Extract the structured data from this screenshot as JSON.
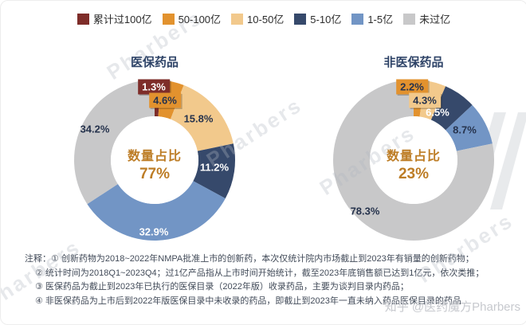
{
  "colors": {
    "darkred": "#7E2D29",
    "orange": "#E2922E",
    "tan": "#F2C98C",
    "navy": "#36496B",
    "blue": "#7295C5",
    "gray": "#C8C8C9",
    "center_text": "#BD7D26",
    "title_text": "#2F4468",
    "dark_label": "#26334D",
    "note_text": "#414A58",
    "watermark": "#C7C9CE"
  },
  "legend": {
    "items": [
      {
        "label": "累计过100亿",
        "color": "darkred"
      },
      {
        "label": "50-100亿",
        "color": "orange"
      },
      {
        "label": "10-50亿",
        "color": "tan"
      },
      {
        "label": "5-10亿",
        "color": "navy"
      },
      {
        "label": "1-5亿",
        "color": "blue"
      },
      {
        "label": "未过亿",
        "color": "gray"
      }
    ]
  },
  "chart_data": [
    {
      "type": "pie",
      "donut": true,
      "title": "医保药品",
      "center_label": "数量占比",
      "center_value": "77%",
      "categories": [
        "累计过100亿",
        "50-100亿",
        "10-50亿",
        "5-10亿",
        "1-5亿",
        "未过亿"
      ],
      "values": [
        1.3,
        4.6,
        15.8,
        11.2,
        32.9,
        34.2
      ],
      "segments": [
        {
          "category": "累计过100亿",
          "value": 1.3,
          "label": "1.3%",
          "color": "darkred"
        },
        {
          "category": "50-100亿",
          "value": 4.6,
          "label": "4.6%",
          "color": "orange"
        },
        {
          "category": "10-50亿",
          "value": 15.8,
          "label": "15.8%",
          "color": "tan"
        },
        {
          "category": "5-10亿",
          "value": 11.2,
          "label": "11.2%",
          "color": "navy"
        },
        {
          "category": "1-5亿",
          "value": 32.9,
          "label": "32.9%",
          "color": "blue"
        },
        {
          "category": "未过亿",
          "value": 34.2,
          "label": "34.2%",
          "color": "gray"
        }
      ]
    },
    {
      "type": "pie",
      "donut": true,
      "title": "非医保药品",
      "center_label": "数量占比",
      "center_value": "23%",
      "categories": [
        "50-100亿",
        "10-50亿",
        "5-10亿",
        "1-5亿",
        "未过亿"
      ],
      "values": [
        2.2,
        4.3,
        6.5,
        8.7,
        78.3
      ],
      "segments": [
        {
          "category": "50-100亿",
          "value": 2.2,
          "label": "2.2%",
          "color": "orange"
        },
        {
          "category": "10-50亿",
          "value": 4.3,
          "label": "4.3%",
          "color": "tan"
        },
        {
          "category": "5-10亿",
          "value": 6.5,
          "label": "6.5%",
          "color": "navy"
        },
        {
          "category": "1-5亿",
          "value": 8.7,
          "label": "8.7%",
          "color": "blue"
        },
        {
          "category": "未过亿",
          "value": 78.3,
          "label": "78.3%",
          "color": "gray"
        }
      ]
    }
  ],
  "notes": {
    "label": "注释：",
    "lines": [
      "① 创新药物为2018~2022年NMPA批准上市的创新药，本次仅统计院内市场截止到2023年有销量的创新药物；",
      "② 统计时间为2018Q1~2023Q4；过1亿产品指从上市时间开始统计，截至2023年底销售额已达到1亿元，依次类推；",
      "③ 医保药品为截止到2023年已执行的医保目录（2022年版）收录药品，主要为谈判目录内药品；",
      "④ 非医保药品为上市后到2022年版医保目录中未收录的药品，即截止到2023年一直未纳入药品医保目录的药品"
    ]
  },
  "watermark": {
    "diagonal_text": "Pharbers",
    "credit": "知乎 @医药魔方Pharbers"
  }
}
